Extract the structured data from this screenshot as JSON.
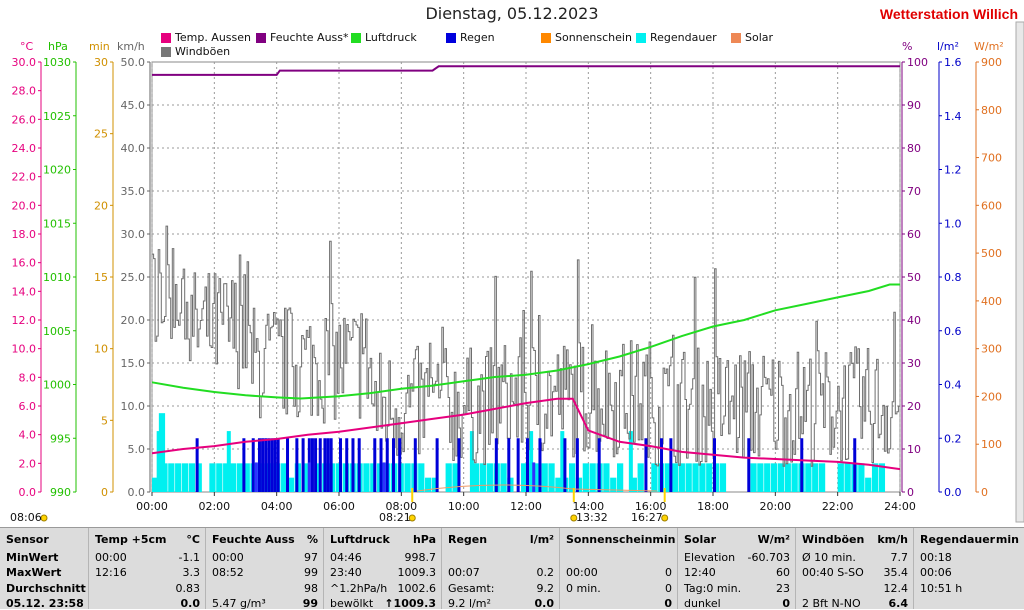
{
  "title": "Dienstag, 05.12.2023",
  "station": "Wetterstation Willich",
  "axes": {
    "temp": {
      "label": "°C",
      "color": "#e6007e",
      "min": 0,
      "max": 30,
      "ticks": [
        "0.0",
        "2.0",
        "4.0",
        "6.0",
        "8.0",
        "10.0",
        "12.0",
        "14.0",
        "16.0",
        "18.0",
        "20.0",
        "22.0",
        "24.0",
        "26.0",
        "28.0",
        "30.0"
      ]
    },
    "pressure": {
      "label": "hPa",
      "color": "#22c000",
      "min": 990,
      "max": 1030,
      "ticks": [
        "990",
        "995",
        "1000",
        "1005",
        "1010",
        "1015",
        "1020",
        "1025",
        "1030"
      ]
    },
    "minutes": {
      "label": "min",
      "color": "#d09000",
      "min": 0,
      "max": 30,
      "ticks": [
        "0",
        "5",
        "10",
        "15",
        "20",
        "25",
        "30"
      ]
    },
    "wind": {
      "label": "km/h",
      "color": "#666666",
      "min": 0,
      "max": 50,
      "ticks": [
        "0.0",
        "5.0",
        "10.0",
        "15.0",
        "20.0",
        "25.0",
        "30.0",
        "35.0",
        "40.0",
        "45.0",
        "50.0"
      ]
    },
    "humidity": {
      "label": "%",
      "color": "#800080",
      "min": 0,
      "max": 100,
      "ticks": [
        "0",
        "10",
        "20",
        "30",
        "40",
        "50",
        "60",
        "70",
        "80",
        "90",
        "100"
      ]
    },
    "rain": {
      "label": "l/m²",
      "color": "#0000c8",
      "min": 0,
      "max": 1.6,
      "ticks": [
        "0.0",
        "0.2",
        "0.4",
        "0.6",
        "0.8",
        "1.0",
        "1.2",
        "1.4",
        "1.6"
      ]
    },
    "solar": {
      "label": "W/m²",
      "color": "#e07020",
      "min": 0,
      "max": 900,
      "ticks": [
        "0",
        "100",
        "200",
        "300",
        "400",
        "500",
        "600",
        "700",
        "800",
        "900"
      ]
    }
  },
  "legend": [
    {
      "label": "Temp. Aussen",
      "color": "#e6007e"
    },
    {
      "label": "Feuchte Auss*",
      "color": "#800080"
    },
    {
      "label": "Luftdruck",
      "color": "#22dd22"
    },
    {
      "label": "Regen",
      "color": "#0000dd"
    },
    {
      "label": "Sonnenschein",
      "color": "#ff8800"
    },
    {
      "label": "Regendauer",
      "color": "#00f0f0"
    },
    {
      "label": "Solar",
      "color": "#ee8855"
    },
    {
      "label": "Windböen",
      "color": "#777777"
    }
  ],
  "chart_data": {
    "type": "line",
    "x_ticks": [
      "00:00",
      "02:00",
      "04:00",
      "06:00",
      "08:00",
      "10:00",
      "12:00",
      "14:00",
      "16:00",
      "18:00",
      "20:00",
      "22:00",
      "24:00"
    ],
    "series": [
      {
        "name": "Temp. Aussen",
        "axis": "temp",
        "points": [
          [
            0,
            2.7
          ],
          [
            1,
            3.0
          ],
          [
            2,
            3.2
          ],
          [
            3,
            3.5
          ],
          [
            4,
            3.7
          ],
          [
            5,
            4.0
          ],
          [
            6,
            4.2
          ],
          [
            7,
            4.5
          ],
          [
            8,
            4.8
          ],
          [
            9,
            5.1
          ],
          [
            10,
            5.4
          ],
          [
            11,
            5.8
          ],
          [
            12,
            6.2
          ],
          [
            13,
            6.5
          ],
          [
            13.5,
            6.5
          ],
          [
            14,
            4.3
          ],
          [
            15,
            3.5
          ],
          [
            16,
            3.2
          ],
          [
            17,
            2.8
          ],
          [
            18,
            2.6
          ],
          [
            19,
            2.4
          ],
          [
            20,
            2.3
          ],
          [
            21,
            2.2
          ],
          [
            22,
            2.1
          ],
          [
            23,
            1.9
          ],
          [
            24,
            1.6
          ]
        ]
      },
      {
        "name": "Feuchte Auss*",
        "axis": "humidity",
        "points": [
          [
            0,
            97
          ],
          [
            4,
            97
          ],
          [
            4.1,
            98
          ],
          [
            9,
            98
          ],
          [
            9.2,
            99
          ],
          [
            24,
            99
          ]
        ]
      },
      {
        "name": "Luftdruck",
        "axis": "pressure",
        "points": [
          [
            0,
            1000.2
          ],
          [
            1,
            999.7
          ],
          [
            2,
            999.3
          ],
          [
            3,
            999.0
          ],
          [
            4,
            998.8
          ],
          [
            4.77,
            998.7
          ],
          [
            6,
            998.9
          ],
          [
            7,
            999.2
          ],
          [
            8,
            999.6
          ],
          [
            9,
            999.9
          ],
          [
            10,
            1000.3
          ],
          [
            11,
            1000.7
          ],
          [
            12,
            1000.9
          ],
          [
            13,
            1001.3
          ],
          [
            14,
            1001.9
          ],
          [
            15,
            1002.6
          ],
          [
            16,
            1003.5
          ],
          [
            17,
            1004.5
          ],
          [
            18,
            1005.4
          ],
          [
            19,
            1006.0
          ],
          [
            20,
            1006.9
          ],
          [
            21,
            1007.5
          ],
          [
            22,
            1008.1
          ],
          [
            23,
            1008.7
          ],
          [
            23.67,
            1009.3
          ],
          [
            24,
            1009.3
          ]
        ]
      }
    ],
    "wind_gusts": {
      "axis": "wind",
      "summary": {
        "max": 35.4,
        "max_time": "00:40",
        "avg10": 7.7
      }
    },
    "rain": {
      "axis": "rain",
      "max_bar": 0.2
    },
    "rain_duration": {
      "axis": "minutes",
      "max_bar": 5
    },
    "markers": [
      {
        "label": "08:06",
        "x": "08:06"
      },
      {
        "label": "08:21",
        "x": "08:21"
      },
      {
        "label": "13:32",
        "x": "13:32"
      },
      {
        "label": "16:27",
        "x": "16:27"
      }
    ]
  },
  "panel": {
    "sensor": {
      "head": "Sensor",
      "rows": [
        "MinWert",
        "MaxWert",
        "Durchschnitt",
        "05.12. 23:58"
      ]
    },
    "temp": {
      "head": "Temp +5cm",
      "unit": "°C",
      "rows": [
        [
          "00:00",
          "-1.1"
        ],
        [
          "12:16",
          "3.3"
        ],
        [
          "",
          "0.83"
        ],
        [
          "",
          "0.0"
        ]
      ]
    },
    "hum": {
      "head": "Feuchte Auss",
      "unit": "%",
      "rows": [
        [
          "00:00",
          "97"
        ],
        [
          "08:52",
          "99"
        ],
        [
          "",
          "98"
        ],
        [
          "5.47 g/m³",
          "99"
        ]
      ]
    },
    "press": {
      "head": "Luftdruck",
      "unit": "hPa",
      "rows": [
        [
          "04:46",
          "998.7"
        ],
        [
          "23:40",
          "1009.3"
        ],
        [
          "^1.2hPa/h",
          "1002.6"
        ],
        [
          "bewölkt",
          "↑1009.3"
        ]
      ]
    },
    "rain": {
      "head": "Regen",
      "unit": "l/m²",
      "rows": [
        [
          "",
          ""
        ],
        [
          "00:07",
          "0.2"
        ],
        [
          "Gesamt:",
          "9.2"
        ],
        [
          "9.2 l/m²",
          "0.0"
        ]
      ]
    },
    "sun": {
      "head": "Sonnenschein",
      "unit": "min",
      "rows": [
        [
          "",
          ""
        ],
        [
          "00:00",
          "0"
        ],
        [
          "0 min.",
          "0"
        ],
        [
          "",
          "0"
        ]
      ]
    },
    "solar": {
      "head": "Solar",
      "unit": "W/m²",
      "rows": [
        [
          "Elevation",
          "-60.703"
        ],
        [
          "12:40",
          "60"
        ],
        [
          "Tag:0 min.",
          "23"
        ],
        [
          "dunkel",
          "0"
        ]
      ]
    },
    "wind": {
      "head": "Windböen",
      "unit": "km/h",
      "rows": [
        [
          "Ø 10 min.",
          "7.7"
        ],
        [
          "00:40  S-SO",
          "35.4"
        ],
        [
          "",
          "12.4"
        ],
        [
          "2 Bft N-NO",
          "6.4"
        ]
      ]
    },
    "dur": {
      "head": "Regendauer",
      "unit": "min",
      "rows": [
        [
          "00:18",
          ""
        ],
        [
          "00:06",
          ""
        ],
        [
          "10:51 h",
          ""
        ],
        [
          "",
          ""
        ]
      ]
    }
  }
}
